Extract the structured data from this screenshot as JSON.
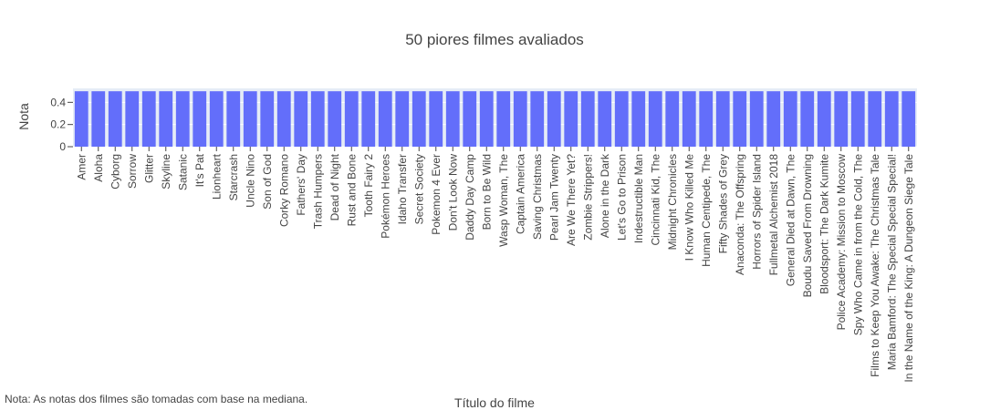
{
  "chart_data": {
    "type": "bar",
    "title": "50 piores filmes avaliados",
    "xlabel": "Título do filme",
    "ylabel": "Nota",
    "ylim": [
      0,
      0.526
    ],
    "yticks": [
      0,
      0.2,
      0.4
    ],
    "ytick_labels": [
      "0",
      "0.2",
      "0.4"
    ],
    "grid": "horizontal",
    "bar_color": "#636efa",
    "plot_bg": "#e5ecf6",
    "categories": [
      "Amer",
      "Aloha",
      "Cyborg",
      "Sorrow",
      "Glitter",
      "Skyline",
      "Satanic",
      "It's Pat",
      "Lionheart",
      "Starcrash",
      "Uncle Nino",
      "Son of God",
      "Corky Romano",
      "Fathers' Day",
      "Trash Humpers",
      "Dead of Night",
      "Rust and Bone",
      "Tooth Fairy 2",
      "Pokémon Heroes",
      "Idaho Transfer",
      "Secret Society",
      "Pokemon 4 Ever",
      "Don't Look Now",
      "Daddy Day Camp",
      "Born to Be Wild",
      "Wasp Woman, The",
      "Captain America",
      "Saving Christmas",
      "Pearl Jam Twenty",
      "Are We There Yet?",
      "Zombie Strippers!",
      "Alone in the Dark",
      "Let's Go to Prison",
      "Indestructible Man",
      "Cincinnati Kid, The",
      "Midnight Chronicles",
      "I Know Who Killed Me",
      "Human Centipede, The",
      "Fifty Shades of Grey",
      "Anaconda: The Offspring",
      "Horrors of Spider Island",
      "Fullmetal Alchemist 2018",
      "General Died at Dawn, The",
      "Boudu Saved From Drowning",
      "Bloodsport: The Dark Kumite",
      "Police Academy: Mission to Moscow",
      "Spy Who Came in from the Cold, The",
      "Films to Keep You Awake: The Christmas Tale",
      "Maria Bamford: The Special Special Special!",
      "In the Name of the King: A Dungeon Siege Tale"
    ],
    "values": [
      0.5,
      0.5,
      0.5,
      0.5,
      0.5,
      0.5,
      0.5,
      0.5,
      0.5,
      0.5,
      0.5,
      0.5,
      0.5,
      0.5,
      0.5,
      0.5,
      0.5,
      0.5,
      0.5,
      0.5,
      0.5,
      0.5,
      0.5,
      0.5,
      0.5,
      0.5,
      0.5,
      0.5,
      0.5,
      0.5,
      0.5,
      0.5,
      0.5,
      0.5,
      0.5,
      0.5,
      0.5,
      0.5,
      0.5,
      0.5,
      0.5,
      0.5,
      0.5,
      0.5,
      0.5,
      0.5,
      0.5,
      0.5,
      0.5,
      0.5
    ]
  },
  "footnote": "Nota: As notas dos filmes são tomadas com base na mediana."
}
